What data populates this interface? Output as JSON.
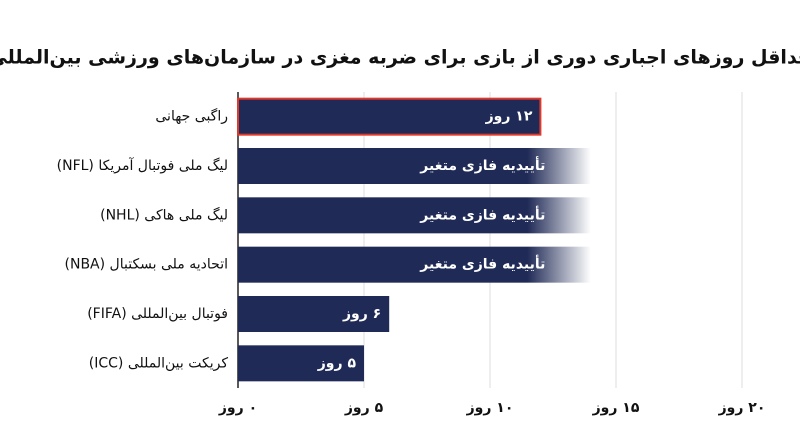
{
  "chart_data": {
    "type": "barh",
    "title": "حداقل روزهای اجباری دوری از بازی برای ضربه مغزی در سازمان‌های ورزشی بین‌المللی",
    "categories": [
      "راگبی جهانی",
      "لیگ ملی فوتبال آمریکا (NFL)",
      "لیگ ملی هاکی (NHL)",
      "اتحادیه ملی بسکتبال (NBA)",
      "فوتبال بین‌المللی (FIFA)",
      "کریکت بین‌المللی (ICC)"
    ],
    "values": [
      12,
      14,
      14,
      14,
      6,
      5
    ],
    "value_labels": [
      "۱۲ روز",
      "تأییدیه فازی متغیر",
      "تأییدیه فازی متغیر",
      "تأییدیه فازی متغیر",
      "۶ روز",
      "۵ روز"
    ],
    "faded": [
      false,
      true,
      true,
      true,
      false,
      false
    ],
    "highlight": [
      true,
      false,
      false,
      false,
      false,
      false
    ],
    "color": "#1f2a56",
    "highlight_color": "#e0392c",
    "xlim": [
      0,
      20
    ],
    "xticks": [
      {
        "value": 0,
        "label": "۰ روز"
      },
      {
        "value": 5,
        "label": "۵ روز"
      },
      {
        "value": 10,
        "label": "۱۰ روز"
      },
      {
        "value": 15,
        "label": "۱۵ روز"
      },
      {
        "value": 20,
        "label": "۲۰ روز"
      }
    ],
    "grid": true
  }
}
